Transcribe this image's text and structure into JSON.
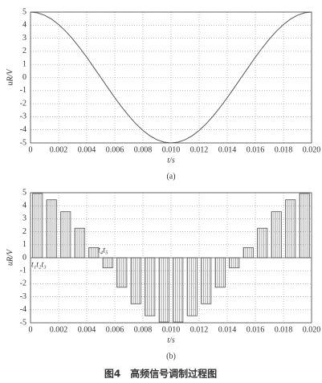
{
  "chart_data": [
    {
      "type": "line",
      "subtitle": "(a)",
      "x_label": "t/s",
      "y_label": "uR/V",
      "color": "#555555",
      "grid": true,
      "x": [
        0,
        0.0005,
        0.001,
        0.0015,
        0.002,
        0.0025,
        0.003,
        0.0035,
        0.004,
        0.0045,
        0.005,
        0.0055,
        0.006,
        0.0065,
        0.007,
        0.0075,
        0.008,
        0.0085,
        0.009,
        0.0095,
        0.01,
        0.0105,
        0.011,
        0.0115,
        0.012,
        0.0125,
        0.013,
        0.0135,
        0.014,
        0.0145,
        0.015,
        0.0155,
        0.016,
        0.0165,
        0.017,
        0.0175,
        0.018,
        0.0185,
        0.019,
        0.0195,
        0.02
      ],
      "values": [
        5,
        4.94,
        4.76,
        4.46,
        4.05,
        3.54,
        2.94,
        2.27,
        1.55,
        0.78,
        0,
        -0.78,
        -1.55,
        -2.27,
        -2.94,
        -3.54,
        -4.05,
        -4.46,
        -4.76,
        -4.94,
        -5,
        -4.94,
        -4.76,
        -4.46,
        -4.05,
        -3.54,
        -2.94,
        -2.27,
        -1.55,
        -0.78,
        0,
        0.78,
        1.55,
        2.27,
        2.94,
        3.54,
        4.05,
        4.46,
        4.76,
        4.94,
        5
      ],
      "xlim": [
        0,
        0.02
      ],
      "ylim": [
        -5,
        5
      ],
      "xticks": [
        0,
        0.002,
        0.004,
        0.006,
        0.008,
        {
          "value": 0.01,
          "label": "0.010"
        },
        0.012,
        0.014,
        0.016,
        0.018,
        {
          "value": 0.02,
          "label": "0.020"
        }
      ],
      "yticks": [
        -5,
        -4,
        -3,
        -2,
        -1,
        0,
        1,
        2,
        3,
        4,
        5
      ]
    },
    {
      "type": "bar",
      "subtitle": "(b)",
      "x_label": "t/s",
      "y_label": "uR/V",
      "color": "#555555",
      "grid": true,
      "annotations": [
        "t₁t₂t₃",
        "t₄t₅"
      ],
      "x": [
        0.0005,
        0.0015,
        0.0025,
        0.0035,
        0.0045,
        0.0055,
        0.0065,
        0.0075,
        0.0085,
        0.0095,
        0.0105,
        0.0115,
        0.0125,
        0.0135,
        0.0145,
        0.0155,
        0.0165,
        0.0175,
        0.0185,
        0.0195
      ],
      "values": [
        4.94,
        4.46,
        3.54,
        2.27,
        0.78,
        -0.78,
        -2.27,
        -3.54,
        -4.46,
        -4.94,
        -4.94,
        -4.46,
        -3.54,
        -2.27,
        -0.78,
        0.78,
        2.27,
        3.54,
        4.46,
        4.94
      ],
      "xlim": [
        0,
        0.02
      ],
      "ylim": [
        -5,
        5
      ],
      "xticks": [
        0,
        0.002,
        0.004,
        0.006,
        0.008,
        {
          "value": 0.01,
          "label": "0.010"
        },
        0.012,
        0.014,
        0.016,
        0.018,
        {
          "value": 0.02,
          "label": "0.020"
        }
      ],
      "yticks": [
        -5,
        -4,
        -3,
        -2,
        -1,
        0,
        1,
        2,
        3,
        4,
        5
      ]
    }
  ],
  "caption": "图4　高频信号调制过程图"
}
